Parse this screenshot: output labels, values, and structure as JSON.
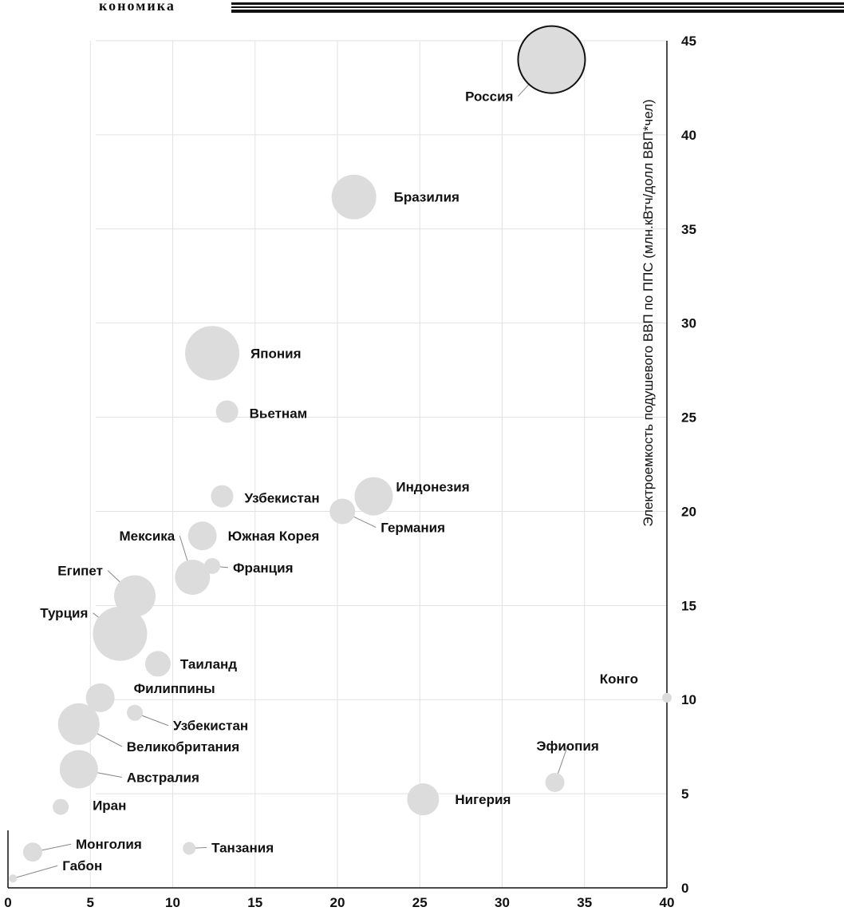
{
  "header": {
    "fragment": "кономика"
  },
  "chart_data": {
    "type": "scatter",
    "title": "",
    "xlabel": "",
    "ylabel": "Электроемкость подушевого ВВП по ППС (млн.кВтч/долл ВВП*чел)",
    "xlim": [
      0,
      40
    ],
    "ylim": [
      0,
      45
    ],
    "x_ticks": [
      0,
      5,
      10,
      15,
      20,
      25,
      30,
      35,
      40
    ],
    "y_ticks": [
      0,
      5,
      10,
      15,
      20,
      25,
      30,
      35,
      40,
      45
    ],
    "y_axis_position": "right",
    "grid": true,
    "bubble_colors": {
      "fill": "#dcdcdc",
      "highlight_stroke": "#111111"
    },
    "points": [
      {
        "label": "Россия",
        "x": 33,
        "y": 44,
        "size": 2.1,
        "highlight": true
      },
      {
        "label": "Бразилия",
        "x": 21,
        "y": 36.7,
        "size": 1.4
      },
      {
        "label": "Япония",
        "x": 12.4,
        "y": 28.4,
        "size": 1.7
      },
      {
        "label": "Вьетнам",
        "x": 13.3,
        "y": 25.3,
        "size": 0.7
      },
      {
        "label": "Узбекистан",
        "x": 13,
        "y": 20.8,
        "size": 0.7
      },
      {
        "label": "Индонезия",
        "x": 22.2,
        "y": 20.8,
        "size": 1.2
      },
      {
        "label": "Германия",
        "x": 20.3,
        "y": 20,
        "size": 0.8
      },
      {
        "label": "Южная Корея",
        "x": 11.8,
        "y": 18.7,
        "size": 0.9
      },
      {
        "label": "Мексика",
        "x": 11.2,
        "y": 16.5,
        "size": 1.1
      },
      {
        "label": "Франция",
        "x": 12.4,
        "y": 17.1,
        "size": 0.5
      },
      {
        "label": "Египет",
        "x": 7.7,
        "y": 15.5,
        "size": 1.3
      },
      {
        "label": "Турция",
        "x": 6.8,
        "y": 13.5,
        "size": 1.7
      },
      {
        "label": "Таиланд",
        "x": 9.1,
        "y": 11.9,
        "size": 0.8
      },
      {
        "label": "Филиппины",
        "x": 5.6,
        "y": 10.1,
        "size": 0.9
      },
      {
        "label": "Узбекистан",
        "x": 7.7,
        "y": 9.3,
        "size": 0.5
      },
      {
        "label": "Великобритания",
        "x": 4.3,
        "y": 8.7,
        "size": 1.3
      },
      {
        "label": "Австралия",
        "x": 4.3,
        "y": 6.3,
        "size": 1.2
      },
      {
        "label": "Иран",
        "x": 3.2,
        "y": 4.3,
        "size": 0.5
      },
      {
        "label": "Монголия",
        "x": 1.5,
        "y": 1.9,
        "size": 0.6
      },
      {
        "label": "Габон",
        "x": 0.3,
        "y": 0.5,
        "size": 0.2
      },
      {
        "label": "Танзания",
        "x": 11,
        "y": 2.1,
        "size": 0.4
      },
      {
        "label": "Нигерия",
        "x": 25.2,
        "y": 4.7,
        "size": 1.0
      },
      {
        "label": "Эфиопия",
        "x": 33.2,
        "y": 5.6,
        "size": 0.6
      },
      {
        "label": "Конго",
        "x": 40,
        "y": 10.1,
        "size": 0.3
      }
    ]
  }
}
